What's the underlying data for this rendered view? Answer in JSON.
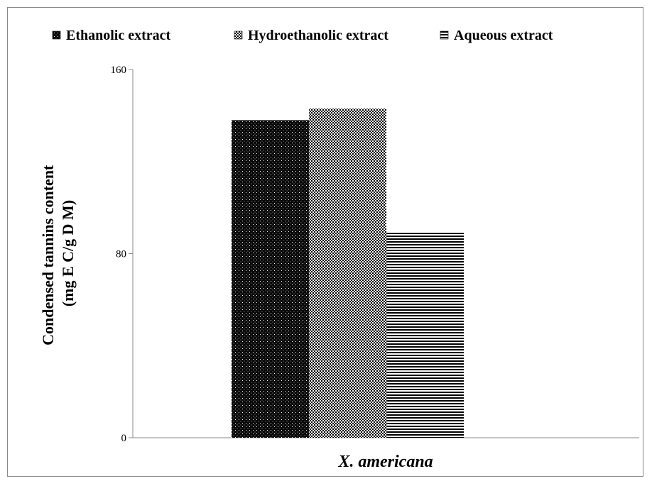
{
  "chart_data": {
    "type": "bar",
    "categories": [
      "X. americana"
    ],
    "series": [
      {
        "name": "Ethanolic extract",
        "values": [
          138
        ],
        "pattern": "dots-dark"
      },
      {
        "name": "Hydroethanolic extract",
        "values": [
          143
        ],
        "pattern": "checker"
      },
      {
        "name": "Aqueous extract",
        "values": [
          89
        ],
        "pattern": "horizontal-lines"
      }
    ],
    "title": "",
    "xlabel": "X. americana",
    "ylabel": [
      "Condensed tannins content",
      "(mg E C/g D M)"
    ],
    "ylim": [
      0,
      160
    ],
    "yticks": [
      "0",
      "80",
      "160"
    ],
    "legend_position": "top",
    "grid": false
  }
}
